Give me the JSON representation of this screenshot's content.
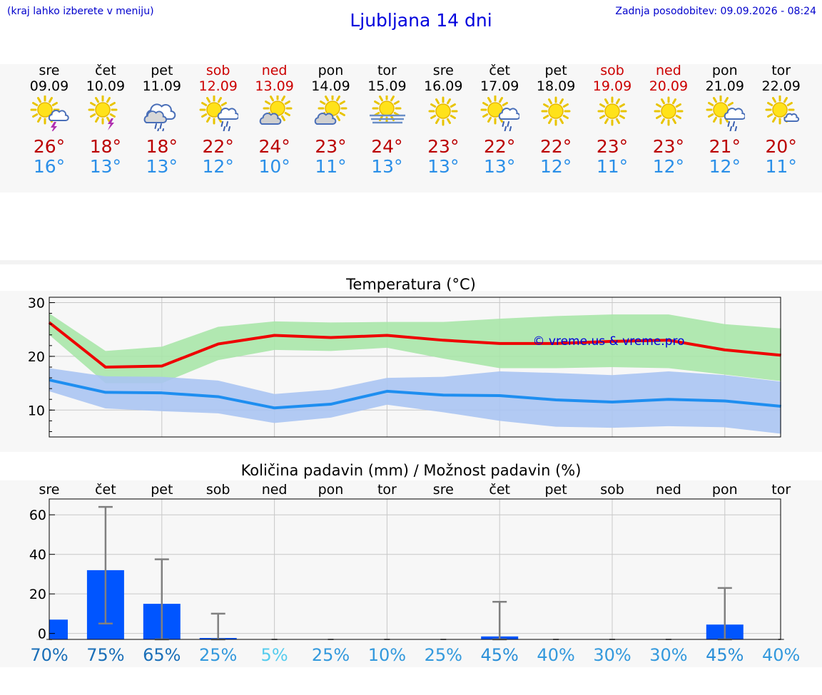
{
  "header": {
    "hint": "(kraj lahko izberete v meniju)",
    "title": "Ljubljana 14 dni",
    "updated": "Zadnja posodobitev: 09.09.2026 - 08:24"
  },
  "days": [
    {
      "name": "sre",
      "date": "09.09",
      "weekend": false,
      "icon": "sun-cloud-thunder-icon",
      "max": "26°",
      "min": "16°"
    },
    {
      "name": "čet",
      "date": "10.09",
      "weekend": false,
      "icon": "sun-thunder-icon",
      "max": "18°",
      "min": "13°"
    },
    {
      "name": "pet",
      "date": "11.09",
      "weekend": false,
      "icon": "cloud-rain-icon",
      "max": "18°",
      "min": "13°"
    },
    {
      "name": "sob",
      "date": "12.09",
      "weekend": true,
      "icon": "sun-cloud-rain-icon",
      "max": "22°",
      "min": "12°"
    },
    {
      "name": "ned",
      "date": "13.09",
      "weekend": true,
      "icon": "cloud-sun-icon",
      "max": "24°",
      "min": "10°"
    },
    {
      "name": "pon",
      "date": "14.09",
      "weekend": false,
      "icon": "sun-cloud-icon",
      "max": "23°",
      "min": "11°"
    },
    {
      "name": "tor",
      "date": "15.09",
      "weekend": false,
      "icon": "sun-fog-icon",
      "max": "24°",
      "min": "13°"
    },
    {
      "name": "sre",
      "date": "16.09",
      "weekend": false,
      "icon": "sun-icon",
      "max": "23°",
      "min": "13°"
    },
    {
      "name": "čet",
      "date": "17.09",
      "weekend": false,
      "icon": "sun-cloud-rain-icon",
      "max": "22°",
      "min": "13°"
    },
    {
      "name": "pet",
      "date": "18.09",
      "weekend": false,
      "icon": "sun-icon",
      "max": "22°",
      "min": "12°"
    },
    {
      "name": "sob",
      "date": "19.09",
      "weekend": true,
      "icon": "sun-icon",
      "max": "23°",
      "min": "11°"
    },
    {
      "name": "ned",
      "date": "20.09",
      "weekend": true,
      "icon": "sun-icon",
      "max": "23°",
      "min": "12°"
    },
    {
      "name": "pon",
      "date": "21.09",
      "weekend": false,
      "icon": "sun-cloud-rain-icon",
      "max": "21°",
      "min": "12°"
    },
    {
      "name": "tor",
      "date": "22.09",
      "weekend": false,
      "icon": "sun-small-cloud-icon",
      "max": "20°",
      "min": "11°"
    }
  ],
  "colors": {
    "max_line": "#ee0000",
    "min_line": "#1e8ef0",
    "max_band": "#a8e6a8",
    "min_band": "#aac4f2",
    "bar": "#0055ff",
    "error": "#808080",
    "weekend": "#cc0000",
    "tmin": "#2a8fe8",
    "tmax": "#bb0000"
  },
  "chart_data": [
    {
      "type": "line",
      "title": "Temperatura (°C)",
      "watermark": "© vreme.us & vreme.pro",
      "x": [
        "09.09",
        "10.09",
        "11.09",
        "12.09",
        "13.09",
        "14.09",
        "15.09",
        "16.09",
        "17.09",
        "18.09",
        "19.09",
        "20.09",
        "21.09",
        "22.09"
      ],
      "ylim": [
        5,
        31
      ],
      "yticks": [
        10,
        20,
        30
      ],
      "grid": true,
      "series": [
        {
          "role": "max",
          "values": [
            26.3,
            18,
            18.2,
            22.3,
            23.9,
            23.5,
            23.9,
            23,
            22.4,
            22.4,
            22.8,
            23,
            21.2,
            20.2
          ],
          "band_low": [
            24,
            15,
            15,
            19.3,
            21.2,
            21,
            21.6,
            19.6,
            17.8,
            17.8,
            18,
            17.8,
            16.6,
            15.4
          ],
          "band_high": [
            28,
            21,
            21.8,
            25.5,
            26.5,
            26.3,
            26.4,
            26.4,
            27,
            27.5,
            27.8,
            27.8,
            26,
            25.2
          ]
        },
        {
          "role": "min",
          "values": [
            15.6,
            13.3,
            13.2,
            12.5,
            10.4,
            11.1,
            13.5,
            12.8,
            12.7,
            11.9,
            11.5,
            12,
            11.7,
            10.7
          ],
          "band_low": [
            13.5,
            10.3,
            9.8,
            9.4,
            7.6,
            8.6,
            11,
            9.6,
            8,
            6.9,
            6.7,
            7,
            6.8,
            5.6
          ],
          "band_high": [
            17.8,
            16.3,
            16.2,
            15.5,
            13,
            13.8,
            16,
            16.2,
            17.2,
            16.9,
            16.5,
            17.2,
            16.5,
            15.3
          ]
        }
      ]
    },
    {
      "type": "bar",
      "title": "Količina padavin (mm) / Možnost padavin (%)",
      "categories": [
        "sre",
        "čet",
        "pet",
        "sob",
        "ned",
        "pon",
        "tor",
        "sre",
        "čet",
        "pet",
        "sob",
        "ned",
        "pon",
        "tor"
      ],
      "values": [
        10,
        35,
        18,
        0.5,
        0,
        0,
        0,
        0,
        1.5,
        0,
        0,
        0,
        7.5,
        0
      ],
      "error_low": [
        0,
        5,
        0,
        0,
        0,
        0,
        0,
        0,
        0,
        0,
        0,
        0,
        0,
        0
      ],
      "error_high": [
        0,
        64,
        37.5,
        10,
        0.3,
        0.3,
        0.3,
        0.3,
        16,
        0.3,
        0.3,
        0.3,
        23,
        0.3
      ],
      "ylim": [
        -3,
        68
      ],
      "yticks": [
        0,
        20,
        40,
        60
      ],
      "grid": true,
      "probability": [
        "70%",
        "75%",
        "65%",
        "25%",
        "5%",
        "25%",
        "10%",
        "25%",
        "45%",
        "40%",
        "30%",
        "30%",
        "45%",
        "40%"
      ],
      "probability_colors": [
        "#1a6fb8",
        "#1a6fb8",
        "#1a6fb8",
        "#3399dd",
        "#55ccee",
        "#3399dd",
        "#3399dd",
        "#3399dd",
        "#2a8fd8",
        "#3399dd",
        "#3399dd",
        "#3399dd",
        "#2a8fd8",
        "#3399dd"
      ]
    }
  ]
}
